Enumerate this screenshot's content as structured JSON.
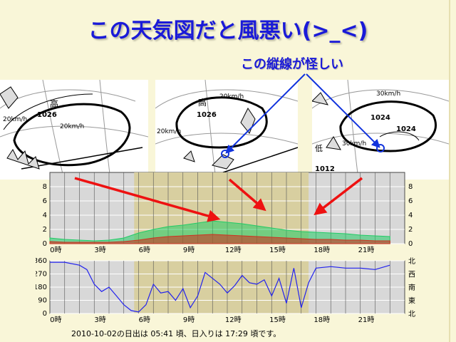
{
  "slide": {
    "title": "この天気図だと風悪い(>_<)",
    "annotation": "この縦線が怪しい"
  },
  "maps": [
    {
      "labels": [
        "高",
        "1026",
        "20km/h",
        "20km/h"
      ]
    },
    {
      "labels": [
        "20km/h",
        "高",
        "1026",
        "20km/h"
      ]
    },
    {
      "labels": [
        "30km/h",
        "1024",
        "1024",
        "30km/h",
        "1012",
        "低"
      ]
    }
  ],
  "chart_data": [
    {
      "type": "area",
      "title": "",
      "ylim": [
        0,
        10
      ],
      "yticks": [
        "0",
        "2",
        "4",
        "6",
        "8"
      ],
      "xticks": [
        "0時",
        "3時",
        "6時",
        "9時",
        "12時",
        "15時",
        "18時",
        "21時"
      ],
      "series": [
        {
          "color": "#22cc66",
          "x": [
            0,
            1,
            2,
            3,
            4,
            5,
            6,
            7,
            8,
            9,
            10,
            11,
            12,
            13,
            14,
            15,
            16,
            17,
            18,
            19,
            20,
            21,
            22,
            23
          ],
          "values": [
            0.8,
            0.6,
            0.5,
            0.4,
            0.5,
            0.8,
            1.5,
            2.0,
            2.4,
            2.6,
            2.9,
            3.2,
            3.0,
            2.8,
            2.5,
            2.2,
            1.9,
            1.7,
            1.6,
            1.5,
            1.4,
            1.2,
            1.1,
            1.0
          ]
        },
        {
          "color": "#cc3322",
          "x": [
            0,
            1,
            2,
            3,
            4,
            5,
            6,
            7,
            8,
            9,
            10,
            11,
            12,
            13,
            14,
            15,
            16,
            17,
            18,
            19,
            20,
            21,
            22,
            23
          ],
          "values": [
            0.3,
            0.2,
            0.2,
            0.2,
            0.2,
            0.3,
            0.5,
            0.8,
            1.0,
            1.1,
            1.2,
            1.3,
            1.2,
            1.1,
            1.0,
            0.9,
            0.8,
            0.7,
            0.6,
            0.6,
            0.5,
            0.5,
            0.4,
            0.4
          ]
        }
      ]
    },
    {
      "type": "line",
      "title": "",
      "ylim": [
        0,
        360
      ],
      "yticks": [
        "0",
        "90",
        "180",
        "270",
        "360"
      ],
      "yticks_right": [
        "北",
        "東",
        "南",
        "西",
        "北"
      ],
      "xticks": [
        "0時",
        "3時",
        "6時",
        "9時",
        "12時",
        "15時",
        "18時",
        "21時"
      ],
      "series": [
        {
          "color": "#2222ee",
          "x": [
            0,
            1,
            2,
            2.5,
            3,
            3.5,
            4,
            4.5,
            5,
            5.5,
            6,
            6.5,
            7,
            7.5,
            8,
            8.5,
            9,
            9.5,
            10,
            10.5,
            11,
            11.5,
            12,
            12.5,
            13,
            13.5,
            14,
            14.5,
            15,
            15.5,
            16,
            16.5,
            17,
            17.5,
            18,
            19,
            20,
            21,
            22,
            23
          ],
          "values": [
            350,
            350,
            330,
            300,
            200,
            150,
            180,
            120,
            60,
            20,
            10,
            60,
            200,
            140,
            150,
            90,
            170,
            40,
            120,
            280,
            240,
            200,
            140,
            190,
            260,
            210,
            200,
            230,
            120,
            240,
            70,
            310,
            40,
            210,
            310,
            320,
            310,
            310,
            300,
            330
          ]
        }
      ]
    }
  ],
  "footer": {
    "text": "2010-10-02の日出は 05:41 頃、日入りは 17:29 頃です。"
  }
}
